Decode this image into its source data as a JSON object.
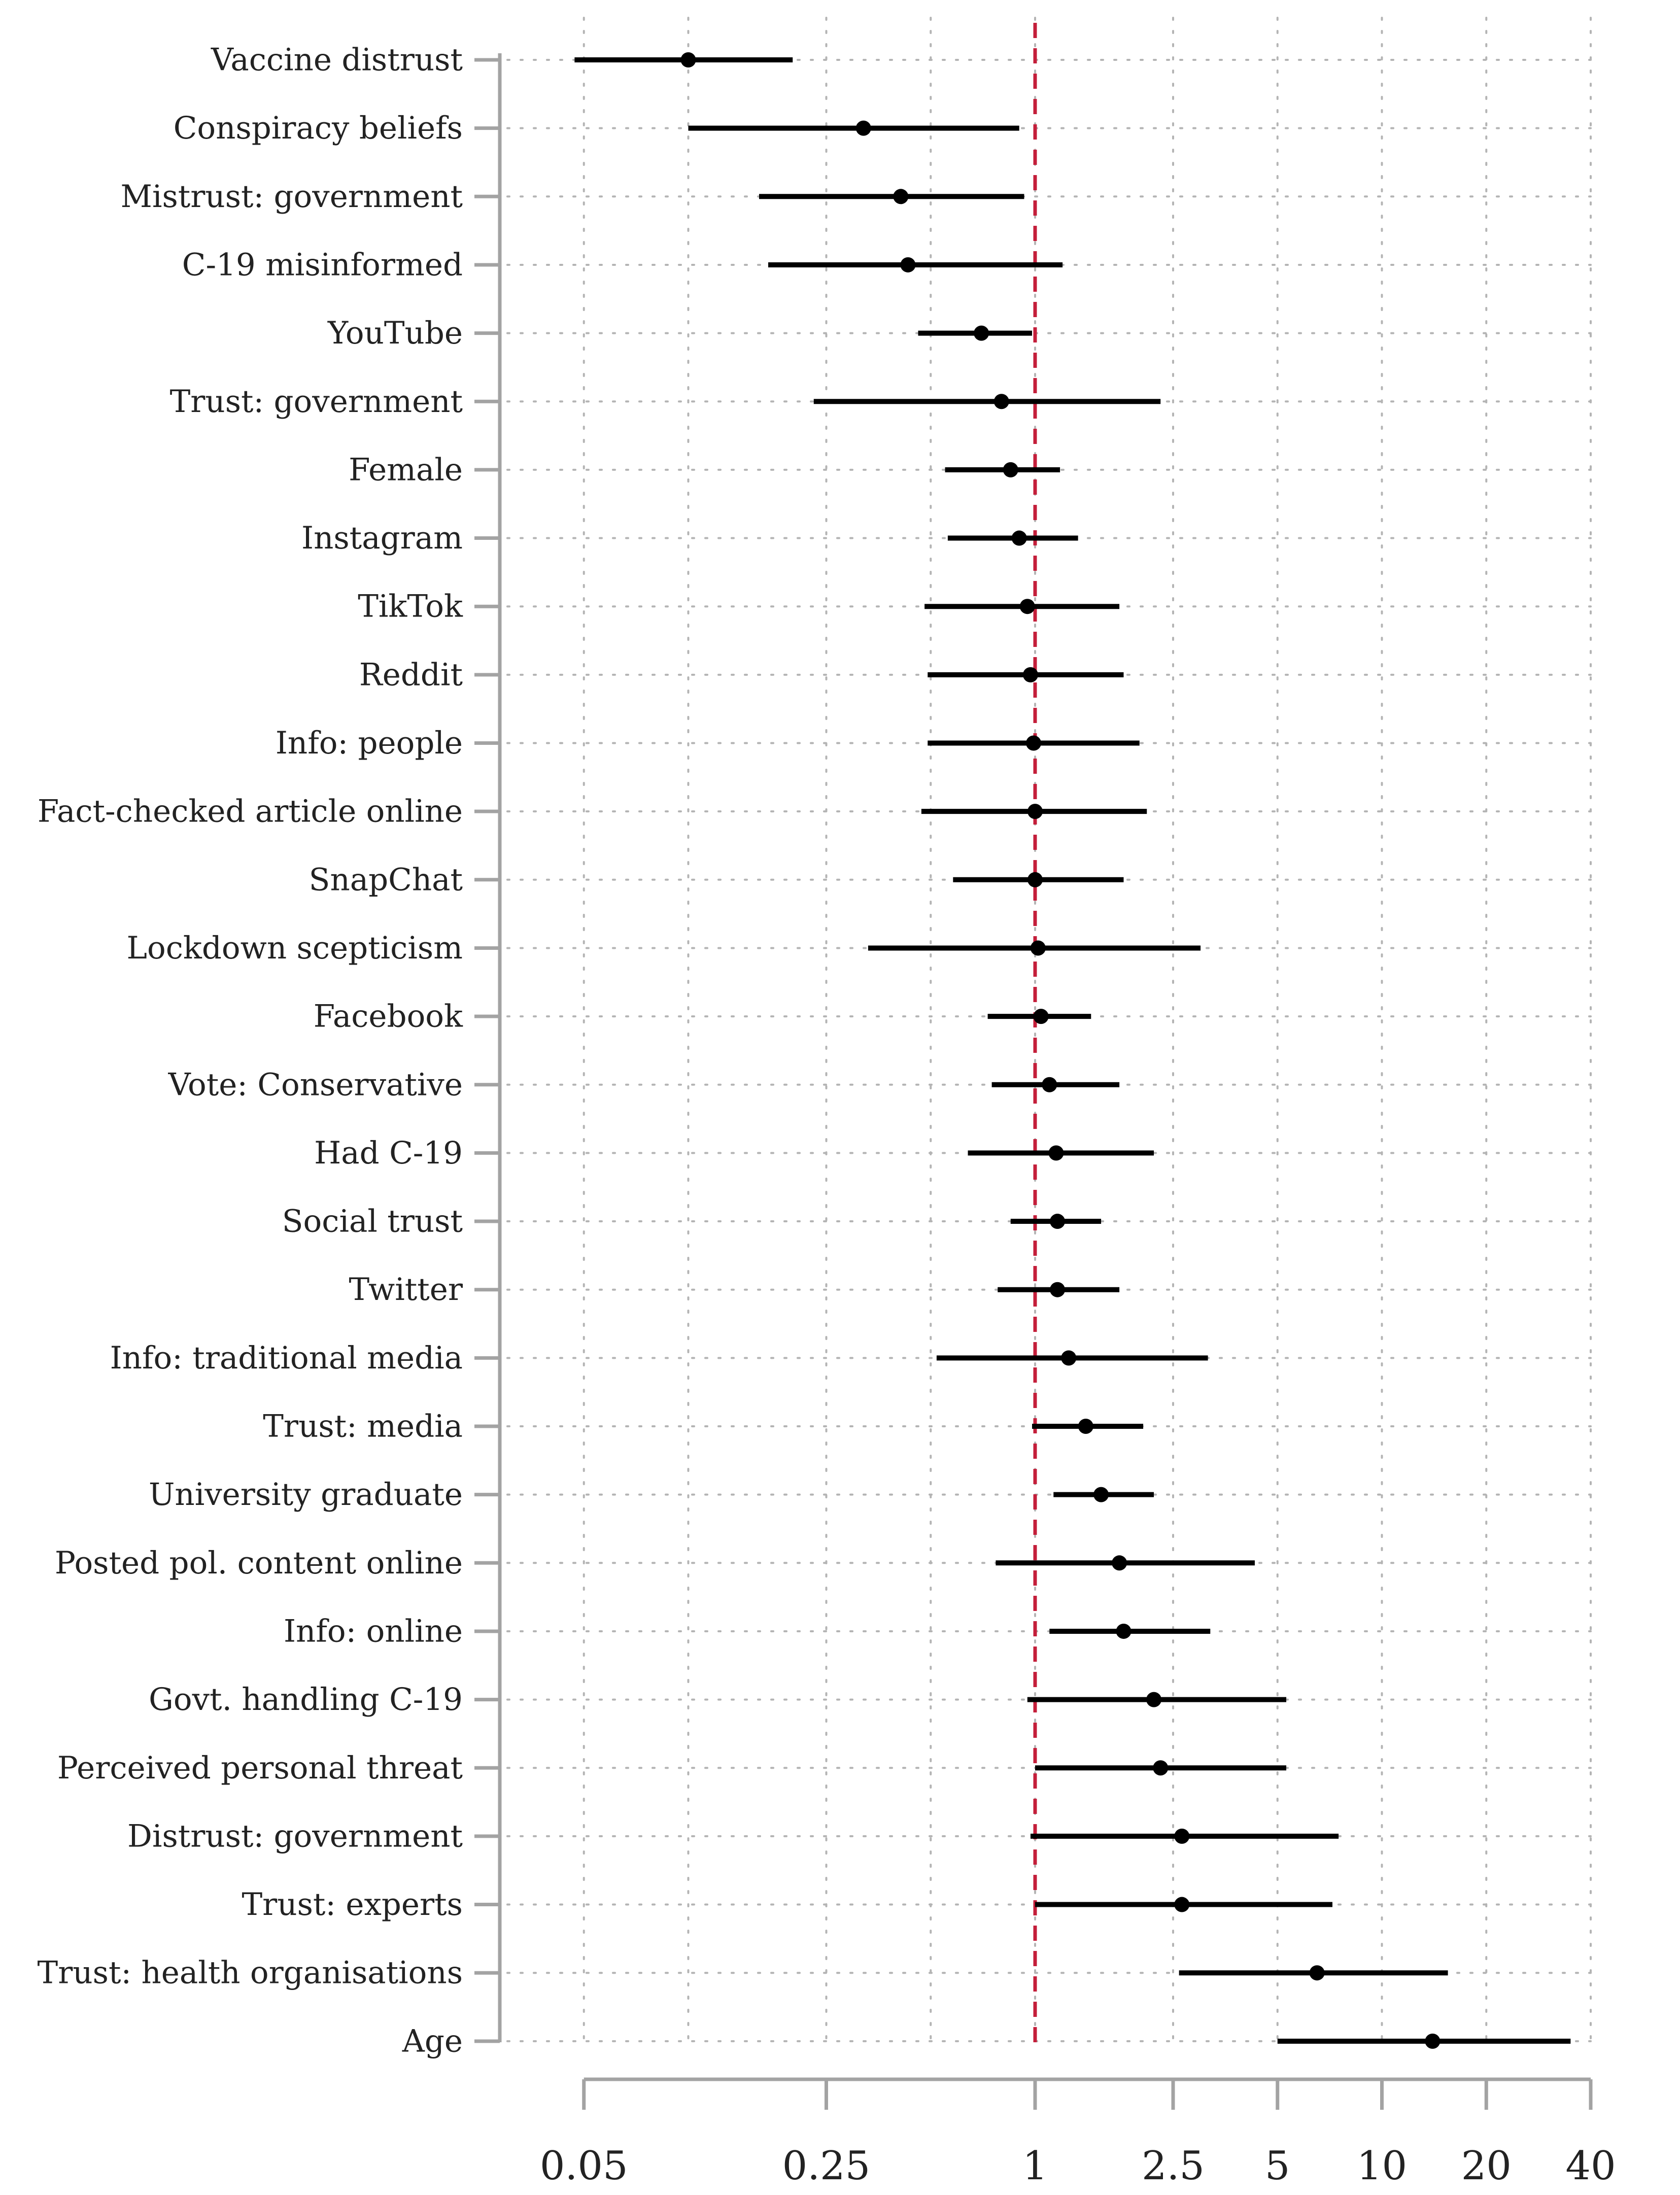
{
  "chart_data": {
    "type": "forest",
    "title": "",
    "xlabel": "",
    "ylabel": "",
    "x_scale": "log",
    "xlim": [
      0.035,
      40
    ],
    "reference_line": {
      "value": 1,
      "color": "#c41e3a",
      "style": "dashed"
    },
    "x_ticks": [
      {
        "value": 0.05,
        "label": "0.05"
      },
      {
        "value": 0.25,
        "label": "0.25"
      },
      {
        "value": 1,
        "label": "1"
      },
      {
        "value": 2.5,
        "label": "2.5"
      },
      {
        "value": 5,
        "label": "5"
      },
      {
        "value": 10,
        "label": "10"
      },
      {
        "value": 20,
        "label": "20"
      },
      {
        "value": 40,
        "label": "40"
      }
    ],
    "grid_x_values": [
      0.05,
      0.1,
      0.25,
      0.5,
      1,
      2.5,
      5,
      10,
      20,
      40
    ],
    "series": [
      {
        "name": "Vaccine distrust",
        "estimate": 0.1,
        "lower": 0.047,
        "upper": 0.2
      },
      {
        "name": "Conspiracy beliefs",
        "estimate": 0.32,
        "lower": 0.1,
        "upper": 0.9
      },
      {
        "name": "Mistrust: government",
        "estimate": 0.41,
        "lower": 0.16,
        "upper": 0.93
      },
      {
        "name": "C-19 misinformed",
        "estimate": 0.43,
        "lower": 0.17,
        "upper": 1.2
      },
      {
        "name": "YouTube",
        "estimate": 0.7,
        "lower": 0.46,
        "upper": 0.98
      },
      {
        "name": "Trust: government",
        "estimate": 0.8,
        "lower": 0.23,
        "upper": 2.3
      },
      {
        "name": "Female",
        "estimate": 0.85,
        "lower": 0.55,
        "upper": 1.18
      },
      {
        "name": "Instagram",
        "estimate": 0.9,
        "lower": 0.56,
        "upper": 1.33
      },
      {
        "name": "TikTok",
        "estimate": 0.95,
        "lower": 0.48,
        "upper": 1.75
      },
      {
        "name": "Reddit",
        "estimate": 0.97,
        "lower": 0.49,
        "upper": 1.8
      },
      {
        "name": "Info: people",
        "estimate": 0.99,
        "lower": 0.49,
        "upper": 2.0
      },
      {
        "name": "Fact-checked article online",
        "estimate": 1.0,
        "lower": 0.47,
        "upper": 2.1
      },
      {
        "name": "SnapChat",
        "estimate": 1.0,
        "lower": 0.58,
        "upper": 1.8
      },
      {
        "name": "Lockdown scepticism",
        "estimate": 1.02,
        "lower": 0.33,
        "upper": 3.0
      },
      {
        "name": "Facebook",
        "estimate": 1.04,
        "lower": 0.73,
        "upper": 1.45
      },
      {
        "name": "Vote: Conservative",
        "estimate": 1.1,
        "lower": 0.75,
        "upper": 1.75
      },
      {
        "name": "Had C-19",
        "estimate": 1.15,
        "lower": 0.64,
        "upper": 2.2
      },
      {
        "name": "Social trust",
        "estimate": 1.16,
        "lower": 0.85,
        "upper": 1.55
      },
      {
        "name": "Twitter",
        "estimate": 1.16,
        "lower": 0.78,
        "upper": 1.75
      },
      {
        "name": "Info: traditional media",
        "estimate": 1.25,
        "lower": 0.52,
        "upper": 3.15
      },
      {
        "name": "Trust: media",
        "estimate": 1.4,
        "lower": 0.98,
        "upper": 2.05
      },
      {
        "name": "University graduate",
        "estimate": 1.55,
        "lower": 1.13,
        "upper": 2.2
      },
      {
        "name": "Posted pol. content online",
        "estimate": 1.75,
        "lower": 0.77,
        "upper": 4.3
      },
      {
        "name": "Info: online",
        "estimate": 1.8,
        "lower": 1.1,
        "upper": 3.2
      },
      {
        "name": "Govt. handling C-19",
        "estimate": 2.2,
        "lower": 0.95,
        "upper": 5.3
      },
      {
        "name": "Perceived personal threat",
        "estimate": 2.3,
        "lower": 1.0,
        "upper": 5.3
      },
      {
        "name": "Distrust: government",
        "estimate": 2.65,
        "lower": 0.97,
        "upper": 7.5
      },
      {
        "name": "Trust: experts",
        "estimate": 2.65,
        "lower": 1.0,
        "upper": 7.2
      },
      {
        "name": "Trust: health organisations",
        "estimate": 6.5,
        "lower": 2.6,
        "upper": 15.5
      },
      {
        "name": "Age",
        "estimate": 14.0,
        "lower": 5.0,
        "upper": 35.0
      }
    ]
  }
}
